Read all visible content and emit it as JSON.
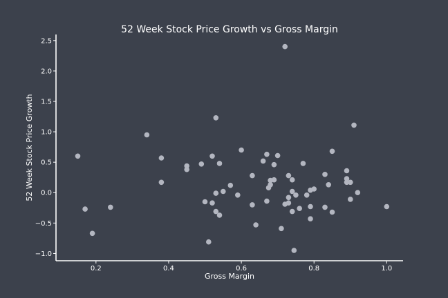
{
  "chart_data": {
    "type": "scatter",
    "title": "52 Week Stock Price Growth vs Gross Margin",
    "xlabel": "Gross Margin",
    "ylabel": "52 Week Stock Price Growth",
    "xlim": [
      0.09,
      1.045
    ],
    "ylim": [
      -1.12,
      2.6
    ],
    "xticks": [
      0.2,
      0.4,
      0.6,
      0.8,
      1.0
    ],
    "xtick_labels": [
      "0.2",
      "0.4",
      "0.6",
      "0.8",
      "1.0"
    ],
    "yticks": [
      -1.0,
      -0.5,
      0.0,
      0.5,
      1.0,
      1.5,
      2.0,
      2.5
    ],
    "ytick_labels": [
      "−1.0",
      "−0.5",
      "0.0",
      "0.5",
      "1.0",
      "1.5",
      "2.0",
      "2.5"
    ],
    "grid": false,
    "point_color": "#b3b6c0",
    "points": [
      {
        "x": 0.15,
        "y": 0.6
      },
      {
        "x": 0.17,
        "y": -0.27
      },
      {
        "x": 0.19,
        "y": -0.67
      },
      {
        "x": 0.24,
        "y": -0.24
      },
      {
        "x": 0.34,
        "y": 0.95
      },
      {
        "x": 0.38,
        "y": 0.57
      },
      {
        "x": 0.38,
        "y": 0.17
      },
      {
        "x": 0.45,
        "y": 0.44
      },
      {
        "x": 0.45,
        "y": 0.38
      },
      {
        "x": 0.49,
        "y": 0.47
      },
      {
        "x": 0.5,
        "y": -0.15
      },
      {
        "x": 0.51,
        "y": -0.81
      },
      {
        "x": 0.52,
        "y": 0.6
      },
      {
        "x": 0.52,
        "y": -0.17
      },
      {
        "x": 0.53,
        "y": 1.23
      },
      {
        "x": 0.53,
        "y": -0.31
      },
      {
        "x": 0.53,
        "y": -0.01
      },
      {
        "x": 0.54,
        "y": 0.48
      },
      {
        "x": 0.54,
        "y": -0.37
      },
      {
        "x": 0.55,
        "y": 0.02
      },
      {
        "x": 0.57,
        "y": 0.12
      },
      {
        "x": 0.59,
        "y": -0.04
      },
      {
        "x": 0.6,
        "y": 0.7
      },
      {
        "x": 0.63,
        "y": 0.28
      },
      {
        "x": 0.63,
        "y": -0.2
      },
      {
        "x": 0.64,
        "y": -0.53
      },
      {
        "x": 0.66,
        "y": 0.52
      },
      {
        "x": 0.67,
        "y": 0.63
      },
      {
        "x": 0.67,
        "y": -0.14
      },
      {
        "x": 0.675,
        "y": 0.08
      },
      {
        "x": 0.68,
        "y": 0.13
      },
      {
        "x": 0.68,
        "y": 0.2
      },
      {
        "x": 0.69,
        "y": 0.46
      },
      {
        "x": 0.69,
        "y": 0.21
      },
      {
        "x": 0.7,
        "y": 0.61
      },
      {
        "x": 0.71,
        "y": -0.59
      },
      {
        "x": 0.72,
        "y": 2.4
      },
      {
        "x": 0.72,
        "y": -0.19
      },
      {
        "x": 0.73,
        "y": 0.28
      },
      {
        "x": 0.73,
        "y": -0.17
      },
      {
        "x": 0.73,
        "y": -0.08
      },
      {
        "x": 0.74,
        "y": 0.21
      },
      {
        "x": 0.74,
        "y": 0.02
      },
      {
        "x": 0.74,
        "y": -0.31
      },
      {
        "x": 0.745,
        "y": -0.95
      },
      {
        "x": 0.75,
        "y": -0.04
      },
      {
        "x": 0.76,
        "y": -0.26
      },
      {
        "x": 0.77,
        "y": 0.48
      },
      {
        "x": 0.78,
        "y": -0.04
      },
      {
        "x": 0.79,
        "y": 0.04
      },
      {
        "x": 0.79,
        "y": -0.23
      },
      {
        "x": 0.79,
        "y": -0.43
      },
      {
        "x": 0.8,
        "y": 0.06
      },
      {
        "x": 0.83,
        "y": 0.3
      },
      {
        "x": 0.83,
        "y": -0.24
      },
      {
        "x": 0.84,
        "y": 0.13
      },
      {
        "x": 0.85,
        "y": 0.68
      },
      {
        "x": 0.85,
        "y": -0.32
      },
      {
        "x": 0.89,
        "y": 0.36
      },
      {
        "x": 0.89,
        "y": 0.23
      },
      {
        "x": 0.89,
        "y": 0.17
      },
      {
        "x": 0.9,
        "y": -0.11
      },
      {
        "x": 0.9,
        "y": 0.17
      },
      {
        "x": 0.91,
        "y": 1.11
      },
      {
        "x": 0.92,
        "y": 0.0
      },
      {
        "x": 1.0,
        "y": -0.23
      }
    ]
  }
}
